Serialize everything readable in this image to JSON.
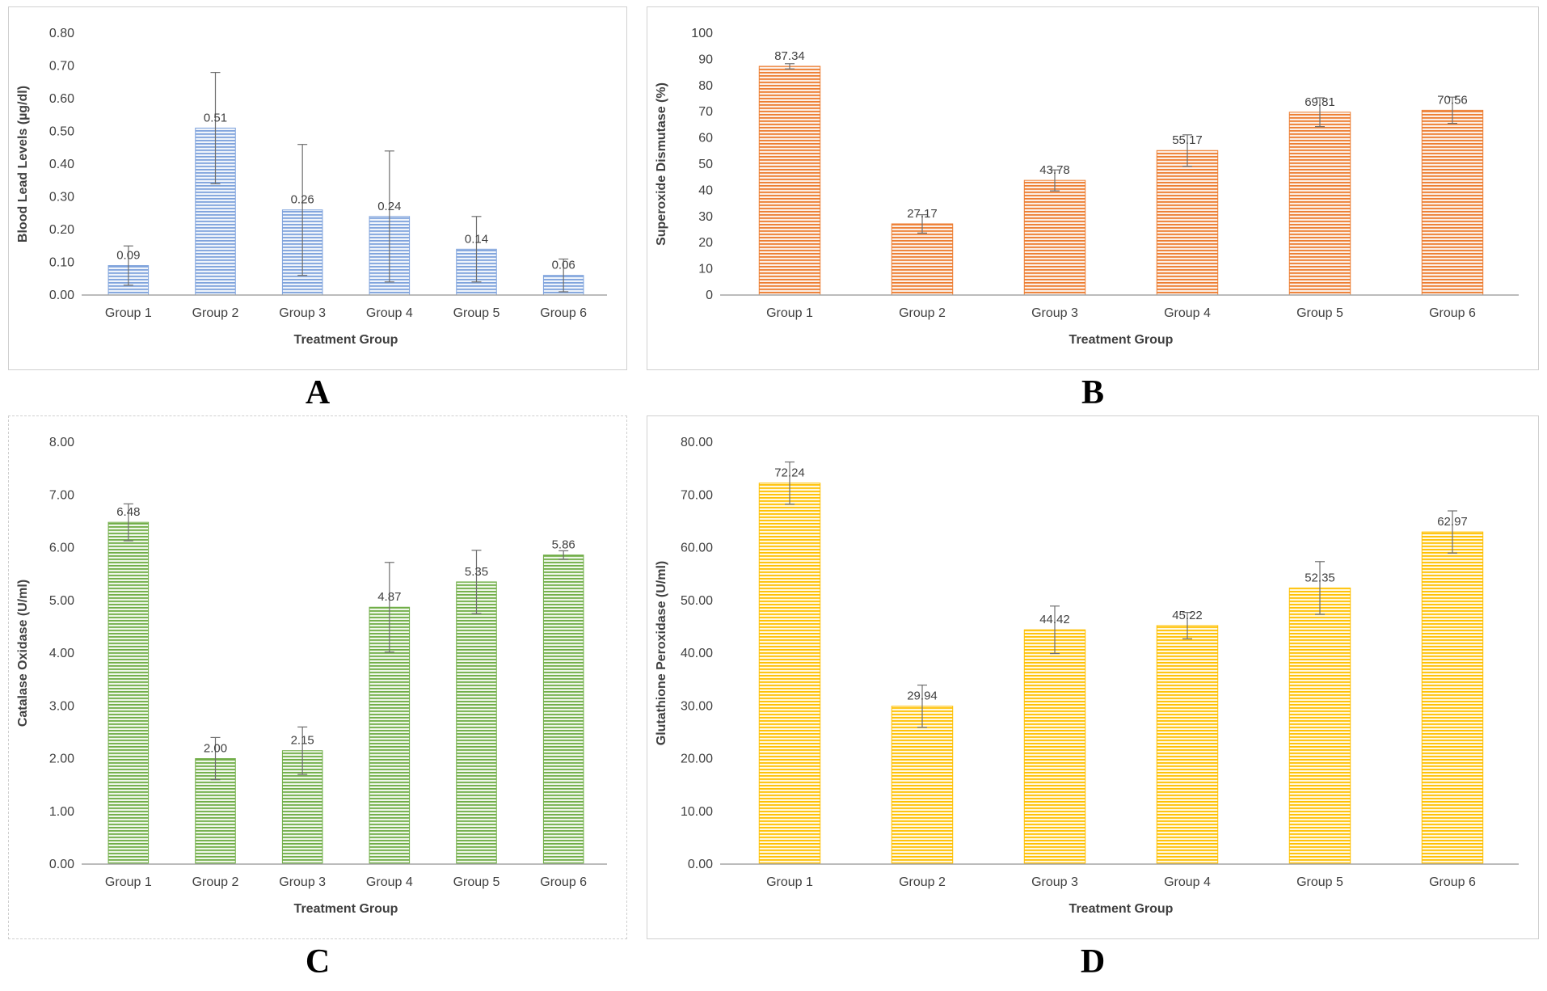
{
  "figure": {
    "background": "#ffffff"
  },
  "chart_data": [
    {
      "type": "bar",
      "panel_label": "A",
      "title": "",
      "xlabel": "Treatment Group",
      "ylabel": "Blood Lead Levels (µg/dl)",
      "categories": [
        "Group 1",
        "Group 2",
        "Group 3",
        "Group 4",
        "Group 5",
        "Group 6"
      ],
      "values": [
        0.09,
        0.51,
        0.26,
        0.24,
        0.14,
        0.06
      ],
      "value_labels": [
        "0.09",
        "0.51",
        "0.26",
        "0.24",
        "0.14",
        "0.06"
      ],
      "errors": [
        0.06,
        0.17,
        0.2,
        0.2,
        0.1,
        0.05
      ],
      "ylim": [
        0,
        0.8
      ],
      "yticks": [
        "0.00",
        "0.10",
        "0.20",
        "0.30",
        "0.40",
        "0.50",
        "0.60",
        "0.70",
        "0.80"
      ],
      "bar_color": "#7FA3DC",
      "bar_bg_color": "#EFF4FB",
      "legend": "none",
      "grid": false
    },
    {
      "type": "bar",
      "panel_label": "B",
      "title": "",
      "xlabel": "Treatment Group",
      "ylabel": "Superoxide Dismutase (%)",
      "categories": [
        "Group 1",
        "Group 2",
        "Group 3",
        "Group 4",
        "Group 5",
        "Group 6"
      ],
      "values": [
        87.34,
        27.17,
        43.78,
        55.17,
        69.81,
        70.56
      ],
      "value_labels": [
        "87.34",
        "27.17",
        "43.78",
        "55.17",
        "69.81",
        "70.56"
      ],
      "errors": [
        1.0,
        3.5,
        4.0,
        6.0,
        5.5,
        5.0
      ],
      "ylim": [
        0,
        100
      ],
      "yticks": [
        "0",
        "10",
        "20",
        "30",
        "40",
        "50",
        "60",
        "70",
        "80",
        "90",
        "100"
      ],
      "bar_color": "#ED7D31",
      "bar_bg_color": "#FCEFE6",
      "legend": "none",
      "grid": false
    },
    {
      "type": "bar",
      "panel_label": "C",
      "title": "",
      "xlabel": "Treatment Group",
      "ylabel": "Catalase Oxidase (U/ml)",
      "categories": [
        "Group 1",
        "Group 2",
        "Group 3",
        "Group 4",
        "Group 5",
        "Group 6"
      ],
      "values": [
        6.48,
        2.0,
        2.15,
        4.87,
        5.35,
        5.86
      ],
      "value_labels": [
        "6.48",
        "2.00",
        "2.15",
        "4.87",
        "5.35",
        "5.86"
      ],
      "errors": [
        0.35,
        0.4,
        0.45,
        0.85,
        0.6,
        0.08
      ],
      "ylim": [
        0,
        8
      ],
      "yticks": [
        "0.00",
        "1.00",
        "2.00",
        "3.00",
        "4.00",
        "5.00",
        "6.00",
        "7.00",
        "8.00"
      ],
      "bar_color": "#70AD47",
      "bar_bg_color": "#EFF7E9",
      "legend": "none",
      "grid": false
    },
    {
      "type": "bar",
      "panel_label": "D",
      "title": "",
      "xlabel": "Treatment Group",
      "ylabel": "Glutathione Peroxidase (U/ml)",
      "categories": [
        "Group 1",
        "Group 2",
        "Group 3",
        "Group 4",
        "Group 5",
        "Group 6"
      ],
      "values": [
        72.24,
        29.94,
        44.42,
        45.22,
        52.35,
        62.97
      ],
      "value_labels": [
        "72.24",
        "29.94",
        "44.42",
        "45.22",
        "52.35",
        "62.97"
      ],
      "errors": [
        4.0,
        4.0,
        4.5,
        2.5,
        5.0,
        4.0
      ],
      "ylim": [
        0,
        80
      ],
      "yticks": [
        "0.00",
        "10.00",
        "20.00",
        "30.00",
        "40.00",
        "50.00",
        "60.00",
        "70.00",
        "80.00"
      ],
      "bar_color": "#FFC000",
      "bar_bg_color": "#FFF8E1",
      "legend": "none",
      "grid": false
    }
  ]
}
